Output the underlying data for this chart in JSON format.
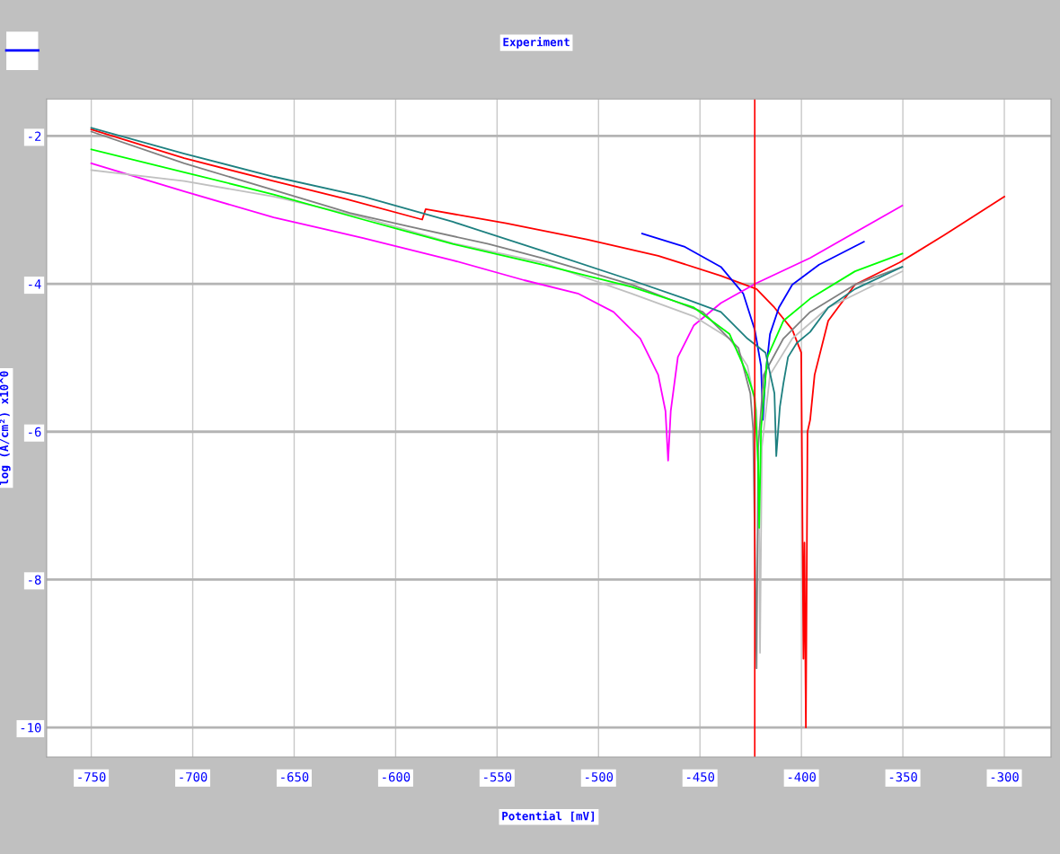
{
  "chart_data": {
    "type": "line",
    "title": "Experiment",
    "xlabel": "Potential [mV]",
    "ylabel": "log (A/cm²) x10^0",
    "xlim": [
      -772,
      -277
    ],
    "ylim": [
      -10.4,
      -1.5
    ],
    "xticks": [
      -750,
      -700,
      -650,
      -600,
      -550,
      -500,
      -450,
      -400,
      -350,
      -300
    ],
    "yticks": [
      -2,
      -4,
      -6,
      -8,
      -10
    ],
    "grid": true,
    "ref_lines": [
      {
        "axis": "x",
        "value": -423,
        "color": "#ff0000"
      }
    ],
    "series": [
      {
        "color": "#ff0000",
        "x": [
          -750,
          -704.2,
          -660.1,
          -624.8,
          -586.9,
          -585.2,
          -545.5,
          -505.8,
          -470.6,
          -439.7,
          -422.1,
          -413.3,
          -404.5,
          -400.1,
          -399.0,
          -398.5,
          -397.8,
          -397.0,
          -395.7,
          -393.5,
          -386.8,
          -373.6,
          -351.6,
          -329.6,
          -300
        ],
        "values": [
          -1.91,
          -2.3,
          -2.61,
          -2.85,
          -3.13,
          -2.99,
          -3.18,
          -3.4,
          -3.62,
          -3.89,
          -4.07,
          -4.32,
          -4.62,
          -4.93,
          -9.07,
          -7.5,
          -10.0,
          -6.0,
          -5.84,
          -5.23,
          -4.5,
          -4.01,
          -3.71,
          -3.34,
          -2.82
        ]
      },
      {
        "color": "#0000ff",
        "x": [
          -478.5,
          -457.4,
          -439.7,
          -428.7,
          -423.0,
          -419.9,
          -419.0,
          -417.7,
          -415.5,
          -411.1,
          -404.5,
          -391.3,
          -369.2
        ],
        "values": [
          -3.32,
          -3.5,
          -3.77,
          -4.13,
          -4.62,
          -5.11,
          -5.84,
          -5.23,
          -4.68,
          -4.32,
          -4.01,
          -3.74,
          -3.43
        ]
      },
      {
        "color": "#ff00ff",
        "x": [
          -750,
          -704.2,
          -660.1,
          -616.0,
          -571.9,
          -536.7,
          -510.2,
          -492.6,
          -479.4,
          -470.6,
          -467.0,
          -465.7,
          -464.4,
          -460.9,
          -453.0,
          -439.7,
          -422.1,
          -395.7,
          -350.3
        ],
        "values": [
          -2.37,
          -2.75,
          -3.1,
          -3.38,
          -3.68,
          -3.95,
          -4.13,
          -4.38,
          -4.74,
          -5.23,
          -5.72,
          -6.39,
          -5.72,
          -4.99,
          -4.56,
          -4.26,
          -3.99,
          -3.65,
          -2.94
        ]
      },
      {
        "color": "#c0c0c0",
        "x": [
          -750,
          -704.2,
          -660.1,
          -616.0,
          -571.9,
          -527.9,
          -483.8,
          -453.0,
          -435.4,
          -426.6,
          -422.1,
          -420.8,
          -420.4,
          -419.5,
          -415.5,
          -404.5,
          -386.8,
          -350.3
        ],
        "values": [
          -2.46,
          -2.61,
          -2.82,
          -3.1,
          -3.45,
          -3.71,
          -4.13,
          -4.44,
          -4.74,
          -5.11,
          -5.72,
          -7.43,
          -8.99,
          -6.21,
          -5.23,
          -4.74,
          -4.32,
          -3.83
        ]
      },
      {
        "color": "#808080",
        "x": [
          -750,
          -704.2,
          -660.1,
          -622.6,
          -594.0,
          -554.3,
          -527.9,
          -483.8,
          -448.6,
          -431.0,
          -425.2,
          -423.8,
          -423.0,
          -422.1,
          -421.3,
          -418.6,
          -408.9,
          -395.7,
          -373.6,
          -350.3
        ],
        "values": [
          -1.94,
          -2.37,
          -2.73,
          -3.04,
          -3.22,
          -3.46,
          -3.65,
          -4.01,
          -4.38,
          -4.87,
          -5.48,
          -5.96,
          -7.43,
          -9.2,
          -6.21,
          -5.23,
          -4.74,
          -4.38,
          -4.01,
          -3.77
        ]
      },
      {
        "color": "#00ff00",
        "x": [
          -750,
          -704.2,
          -660.1,
          -616.0,
          -571.9,
          -527.9,
          -483.8,
          -453.0,
          -435.4,
          -426.6,
          -423.0,
          -421.3,
          -420.8,
          -419.9,
          -416.8,
          -408.9,
          -395.7,
          -373.6,
          -350.3
        ],
        "values": [
          -2.18,
          -2.49,
          -2.79,
          -3.13,
          -3.46,
          -3.74,
          -4.04,
          -4.32,
          -4.68,
          -5.23,
          -5.54,
          -6.45,
          -7.3,
          -5.96,
          -4.99,
          -4.5,
          -4.2,
          -3.83,
          -3.59
        ]
      },
      {
        "color": "#1e8080",
        "x": [
          -750,
          -704.2,
          -660.1,
          -616.0,
          -571.9,
          -527.9,
          -483.8,
          -457.4,
          -439.7,
          -426.6,
          -417.7,
          -413.3,
          -412.4,
          -410.6,
          -408.9,
          -406.6,
          -402.3,
          -395.7,
          -386.8,
          -373.6,
          -350.3
        ],
        "values": [
          -1.89,
          -2.24,
          -2.55,
          -2.82,
          -3.16,
          -3.55,
          -3.95,
          -4.2,
          -4.38,
          -4.74,
          -4.93,
          -5.48,
          -6.33,
          -5.66,
          -5.35,
          -4.99,
          -4.8,
          -4.65,
          -4.32,
          -4.07,
          -3.77
        ]
      }
    ]
  }
}
